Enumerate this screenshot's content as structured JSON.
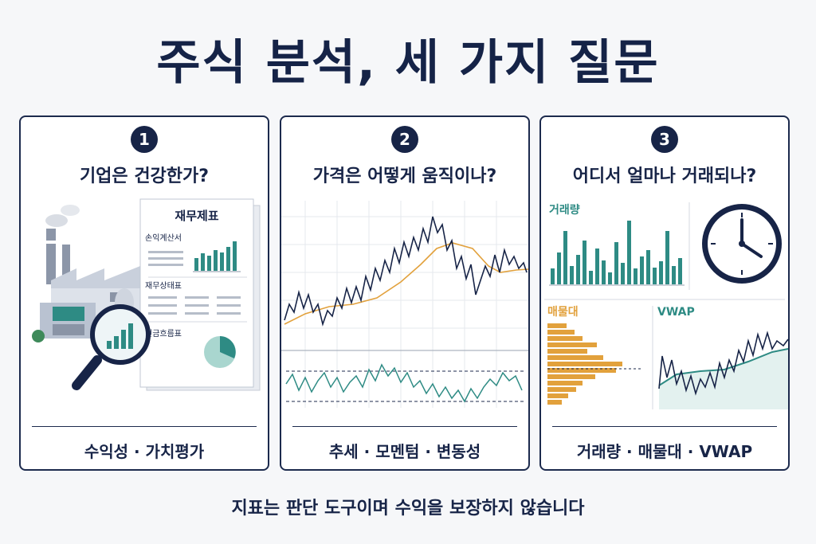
{
  "title": "주식 분석, 세 가지 질문",
  "panels": [
    {
      "number": "1",
      "question": "기업은 건강한가?",
      "doc_title": "재무제표",
      "doc_sections": [
        "손익계산서",
        "재무상태표",
        "현금흐름표"
      ],
      "footer": "수익성 · 가치평가"
    },
    {
      "number": "2",
      "question": "가격은 어떻게 움직이나?",
      "footer": "추세 · 모멘텀 · 변동성"
    },
    {
      "number": "3",
      "question": "어디서 얼마나 거래되나?",
      "labels": {
        "volume": "거래량",
        "volume_profile": "매물대",
        "vwap": "VWAP"
      },
      "footer": "거래량 · 매물대 · VWAP"
    }
  ],
  "disclaimer": "지표는 판단 도구이며 수익을 보장하지 않습니다",
  "colors": {
    "navy": "#172447",
    "teal": "#2e8b84",
    "orange": "#e2a13c"
  }
}
